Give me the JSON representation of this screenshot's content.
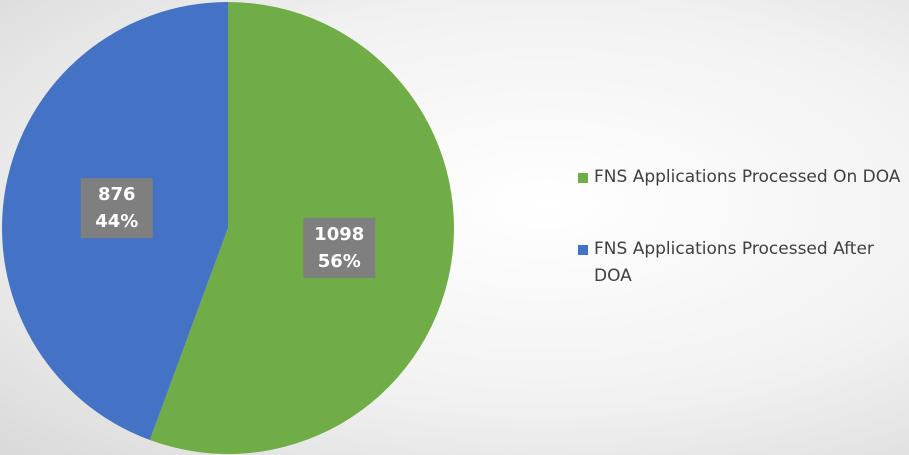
{
  "chart_data": {
    "type": "pie",
    "categories": [
      "FNS Applications Processed On DOA",
      "FNS Applications Processed After DOA"
    ],
    "values": [
      1098,
      876
    ],
    "percent_labels": [
      "56%",
      "44%"
    ],
    "colors": [
      "#70ad47",
      "#4472c4"
    ],
    "legend": "right"
  }
}
